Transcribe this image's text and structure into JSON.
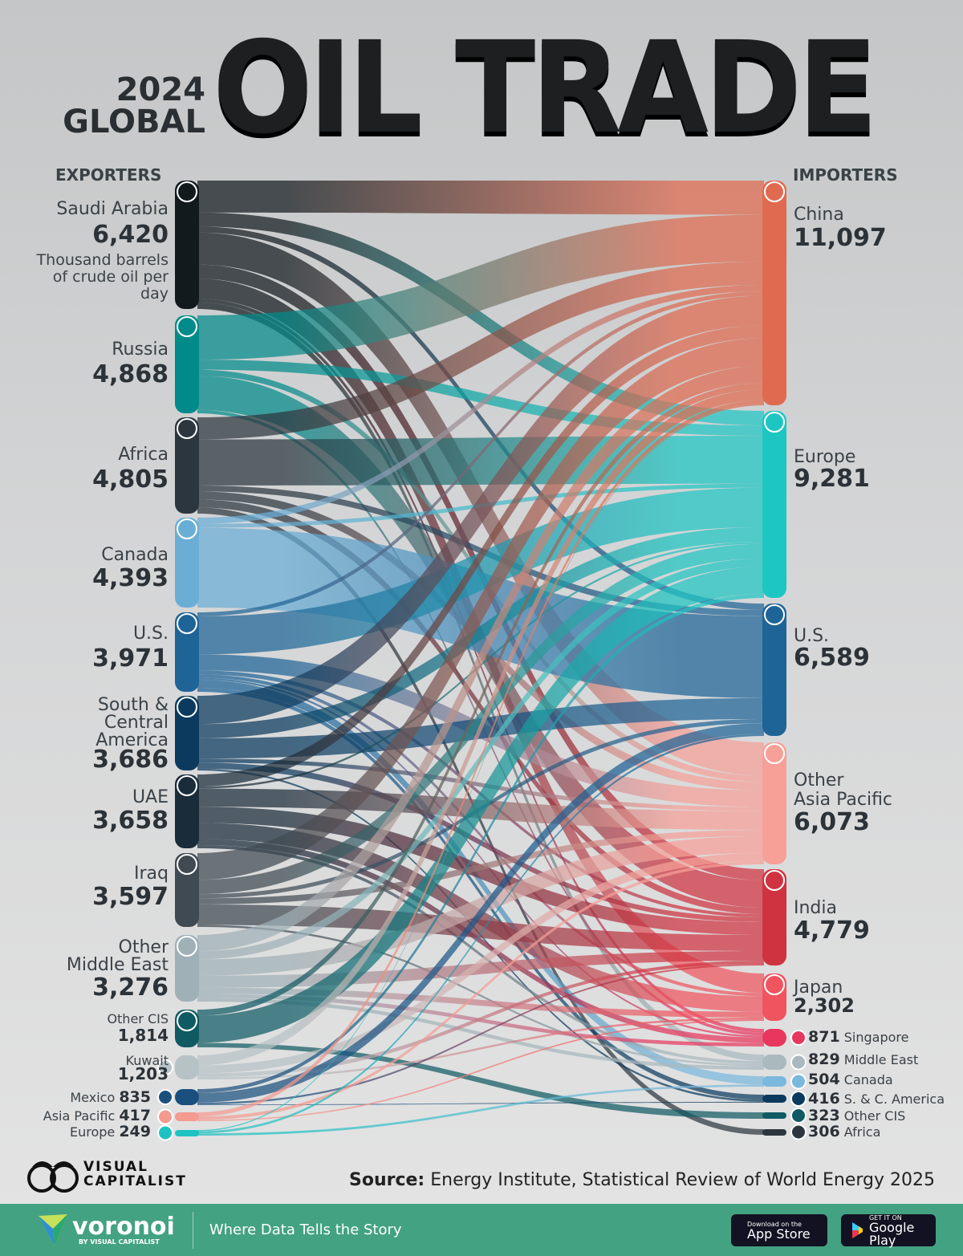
{
  "title": {
    "year": "2024",
    "region": "GLOBAL",
    "main": "OIL TRADE"
  },
  "headers": {
    "exporters": "EXPORTERS",
    "importers": "IMPORTERS"
  },
  "chart_data": {
    "type": "sankey",
    "unit_note": "Thousand barrels of crude oil per day",
    "exporters": [
      {
        "name": "Saudi Arabia",
        "value": "6,420",
        "color": "#121a1e",
        "flag": "saudi-arabia-flag"
      },
      {
        "name": "Russia",
        "value": "4,868",
        "color": "#008a8a",
        "flag": "russia-flag"
      },
      {
        "name": "Africa",
        "value": "4,805",
        "color": "#2c363e",
        "flag": "africa-globe"
      },
      {
        "name": "Canada",
        "value": "4,393",
        "color": "#6aaed6",
        "flag": "canada-flag"
      },
      {
        "name": "U.S.",
        "value": "3,971",
        "color": "#1f6497",
        "flag": "us-flag"
      },
      {
        "name": "South & Central America",
        "value": "3,686",
        "color": "#0b3a5e",
        "flag": "south-america-globe"
      },
      {
        "name": "UAE",
        "value": "3,658",
        "color": "#1a2c3a",
        "flag": "uae-flag"
      },
      {
        "name": "Iraq",
        "value": "3,597",
        "color": "#3f4a52",
        "flag": "iraq-flag"
      },
      {
        "name": "Other Middle East",
        "value": "3,276",
        "color": "#9fb0b6",
        "flag": "middle-east-globe"
      },
      {
        "name": "Other CIS",
        "value": "1,814",
        "color": "#0f5a63",
        "flag": "cis-emblem"
      },
      {
        "name": "Kuwait",
        "value": "1,203",
        "color": "#b6c2c6",
        "flag": "kuwait-flag"
      },
      {
        "name": "Mexico",
        "value": "835",
        "color": "#1a4f7e",
        "flag": "mexico-flag"
      },
      {
        "name": "Asia Pacific",
        "value": "417",
        "color": "#f49a8f",
        "flag": "asia-pacific-globe"
      },
      {
        "name": "Europe",
        "value": "249",
        "color": "#1fc2c2",
        "flag": "europe-globe"
      }
    ],
    "importers": [
      {
        "name": "China",
        "value": "11,097",
        "color": "#e06a4f",
        "flag": "china-flag"
      },
      {
        "name": "Europe",
        "value": "9,281",
        "color": "#1ec6c3",
        "flag": "europe-globe"
      },
      {
        "name": "U.S.",
        "value": "6,589",
        "color": "#1f6497",
        "flag": "us-flag"
      },
      {
        "name": "Other Asia Pacific",
        "value": "6,073",
        "color": "#f7a098",
        "flag": "asia-pacific-globe"
      },
      {
        "name": "India",
        "value": "4,779",
        "color": "#cf3340",
        "flag": "india-flag"
      },
      {
        "name": "Japan",
        "value": "2,302",
        "color": "#f0555f",
        "flag": "japan-flag"
      },
      {
        "name": "Singapore",
        "value": "871",
        "color": "#e8375e",
        "flag": "singapore-flag"
      },
      {
        "name": "Middle East",
        "value": "829",
        "color": "#a9b9be",
        "flag": "middle-east-globe"
      },
      {
        "name": "Canada",
        "value": "504",
        "color": "#7ab8dd",
        "flag": "canada-flag"
      },
      {
        "name": "S. & C. America",
        "value": "416",
        "color": "#0b3a5e",
        "flag": "south-america-globe"
      },
      {
        "name": "Other CIS",
        "value": "323",
        "color": "#0f5a63",
        "flag": "cis-emblem"
      },
      {
        "name": "Africa",
        "value": "306",
        "color": "#2c363e",
        "flag": "africa-globe"
      }
    ],
    "flows": [
      [
        0,
        0,
        1600
      ],
      [
        0,
        1,
        700
      ],
      [
        0,
        2,
        300
      ],
      [
        0,
        3,
        1600
      ],
      [
        0,
        4,
        700
      ],
      [
        0,
        5,
        1000
      ],
      [
        0,
        6,
        200
      ],
      [
        0,
        7,
        320
      ],
      [
        1,
        0,
        2200
      ],
      [
        1,
        1,
        500
      ],
      [
        1,
        3,
        300
      ],
      [
        1,
        4,
        1700
      ],
      [
        1,
        6,
        168
      ],
      [
        2,
        0,
        1100
      ],
      [
        2,
        1,
        2300
      ],
      [
        2,
        2,
        300
      ],
      [
        2,
        3,
        400
      ],
      [
        2,
        4,
        400
      ],
      [
        2,
        11,
        305
      ],
      [
        3,
        0,
        300
      ],
      [
        3,
        1,
        193
      ],
      [
        3,
        2,
        3900
      ],
      [
        4,
        0,
        200
      ],
      [
        4,
        1,
        1900
      ],
      [
        4,
        3,
        800
      ],
      [
        4,
        4,
        200
      ],
      [
        4,
        5,
        171
      ],
      [
        4,
        6,
        100
      ],
      [
        4,
        8,
        400
      ],
      [
        4,
        9,
        200
      ],
      [
        5,
        0,
        1400
      ],
      [
        5,
        1,
        700
      ],
      [
        5,
        2,
        1000
      ],
      [
        5,
        3,
        200
      ],
      [
        5,
        4,
        300
      ],
      [
        5,
        9,
        86
      ],
      [
        6,
        0,
        600
      ],
      [
        6,
        1,
        100
      ],
      [
        6,
        3,
        900
      ],
      [
        6,
        4,
        800
      ],
      [
        6,
        5,
        800
      ],
      [
        6,
        6,
        300
      ],
      [
        6,
        7,
        158
      ],
      [
        7,
        0,
        1300
      ],
      [
        7,
        1,
        700
      ],
      [
        7,
        2,
        200
      ],
      [
        7,
        3,
        300
      ],
      [
        7,
        4,
        1000
      ],
      [
        7,
        7,
        97
      ],
      [
        8,
        0,
        800
      ],
      [
        8,
        1,
        400
      ],
      [
        8,
        3,
        800
      ],
      [
        8,
        4,
        600
      ],
      [
        8,
        5,
        300
      ],
      [
        8,
        6,
        200
      ],
      [
        8,
        7,
        176
      ],
      [
        9,
        0,
        300
      ],
      [
        9,
        1,
        1300
      ],
      [
        9,
        10,
        214
      ],
      [
        10,
        0,
        500
      ],
      [
        10,
        3,
        400
      ],
      [
        10,
        4,
        200
      ],
      [
        10,
        5,
        103
      ],
      [
        11,
        1,
        200
      ],
      [
        11,
        2,
        500
      ],
      [
        11,
        4,
        100
      ],
      [
        11,
        9,
        35
      ],
      [
        12,
        0,
        200
      ],
      [
        12,
        3,
        150
      ],
      [
        12,
        5,
        67
      ],
      [
        13,
        0,
        50
      ],
      [
        13,
        2,
        100
      ],
      [
        13,
        8,
        99
      ]
    ]
  },
  "source": {
    "label": "Source:",
    "text": "Energy Institute, Statistical Review of World Energy 2025"
  },
  "brand": {
    "vc_line1": "VISUAL",
    "vc_line2": "CAPITALIST",
    "voronoi": "voronoi",
    "voronoi_sub": "BY VISUAL CAPITALIST",
    "tagline": "Where Data Tells the Story"
  },
  "stores": {
    "apple_small": "Download on the",
    "apple_big": "App Store",
    "google_small": "GET IT ON",
    "google_big": "Google Play"
  }
}
